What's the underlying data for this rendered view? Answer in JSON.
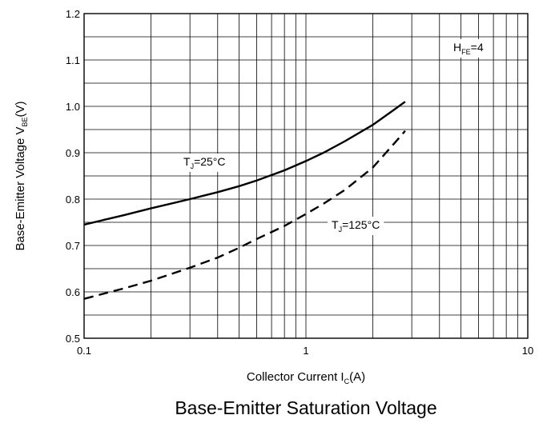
{
  "chart_data": {
    "type": "line",
    "title": "Base-Emitter Saturation Voltage",
    "xlabel": {
      "main": "Collector Current I",
      "sub": "C",
      "unit": "(A)"
    },
    "ylabel": {
      "main": "Base-Emitter Voltage V",
      "sub": "BE",
      "unit": "(V)"
    },
    "xscale": "log",
    "xlim": [
      0.1,
      10
    ],
    "ylim": [
      0.5,
      1.2
    ],
    "xticks": [
      {
        "value": 0.1,
        "label": "0.1"
      },
      {
        "value": 1,
        "label": "1"
      },
      {
        "value": 10,
        "label": "10"
      }
    ],
    "yticks": [
      {
        "value": 0.5,
        "label": "0.5"
      },
      {
        "value": 0.6,
        "label": "0.6"
      },
      {
        "value": 0.7,
        "label": "0.7"
      },
      {
        "value": 0.8,
        "label": "0.8"
      },
      {
        "value": 0.9,
        "label": "0.9"
      },
      {
        "value": 1.0,
        "label": "1.0"
      },
      {
        "value": 1.1,
        "label": "1.1"
      },
      {
        "value": 1.2,
        "label": "1.2"
      }
    ],
    "grid": true,
    "series": [
      {
        "label_main": "T",
        "label_sub": "J",
        "label_rest": "=25°C",
        "style": "solid",
        "x": [
          0.1,
          0.15,
          0.2,
          0.3,
          0.4,
          0.5,
          0.6,
          0.8,
          1.0,
          1.2,
          1.5,
          2.0,
          2.5,
          2.8
        ],
        "y": [
          0.745,
          0.765,
          0.78,
          0.8,
          0.815,
          0.828,
          0.84,
          0.862,
          0.882,
          0.9,
          0.925,
          0.96,
          0.993,
          1.01
        ]
      },
      {
        "label_main": "T",
        "label_sub": "J",
        "label_rest": "=125°C",
        "style": "dashed",
        "x": [
          0.1,
          0.15,
          0.2,
          0.3,
          0.4,
          0.5,
          0.6,
          0.8,
          1.0,
          1.2,
          1.5,
          2.0,
          2.5,
          2.8
        ],
        "y": [
          0.585,
          0.607,
          0.624,
          0.652,
          0.674,
          0.695,
          0.714,
          0.742,
          0.768,
          0.79,
          0.82,
          0.868,
          0.92,
          0.947
        ]
      }
    ],
    "annotations": [
      {
        "main": "H",
        "sub": "FE",
        "rest": "=4"
      }
    ]
  }
}
